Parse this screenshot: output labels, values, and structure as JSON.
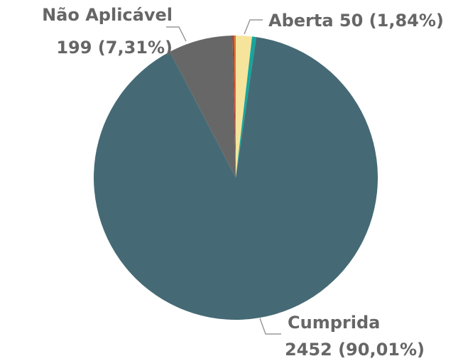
{
  "chart_data": {
    "type": "pie",
    "categories": [
      "Aberta",
      null,
      "Cumprida",
      "Não Aplicável",
      null,
      null
    ],
    "values": [
      50,
      13,
      2452,
      199,
      5,
      5
    ],
    "value_labels": [
      "50 (1,84%)",
      null,
      "2452 (90,01%)",
      "199 (7,31%)",
      null,
      null
    ],
    "colors": [
      "#f6e49c",
      "#16a59c",
      "#456a75",
      "#676767",
      "#b8352a",
      "#d8782f"
    ]
  }
}
